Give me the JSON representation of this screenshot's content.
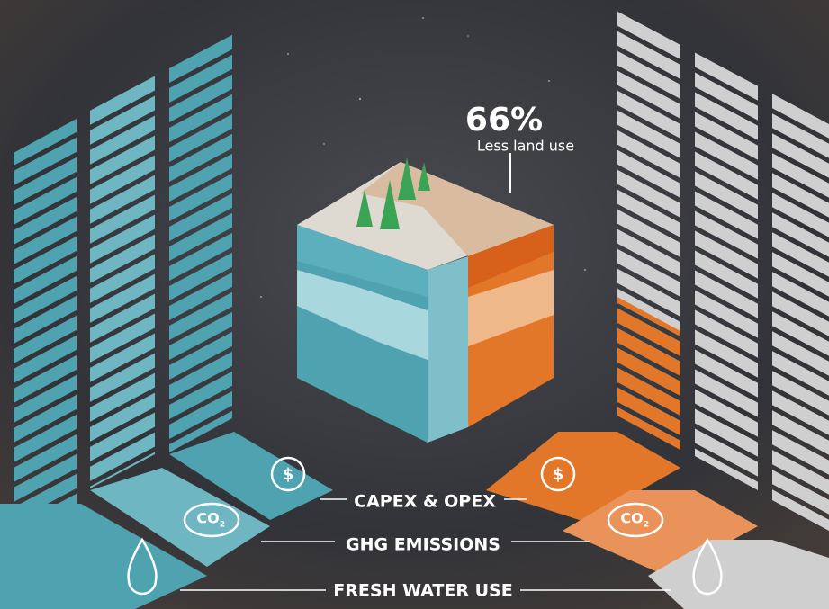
{
  "headline": {
    "value": "66%",
    "label": "Less land use"
  },
  "rows": [
    "CAPEX & OPEX",
    "GHG EMISSIONS",
    "FRESH WATER USE"
  ],
  "icons": {
    "currency": "$",
    "co2": "CO",
    "co2_subscript": "2"
  }
}
